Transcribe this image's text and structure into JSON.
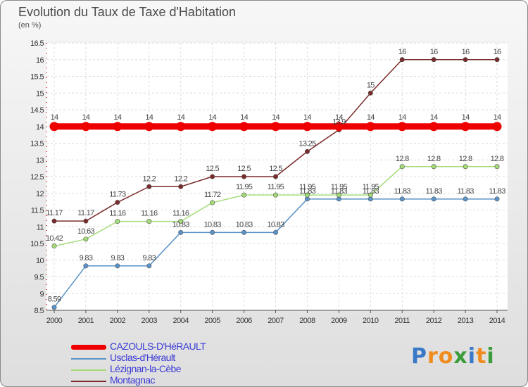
{
  "header": {
    "title": "Evolution du Taux de Taxe d'Habitation",
    "subtitle": "(en %)"
  },
  "chart_data": {
    "type": "line",
    "title": "Evolution du Taux de Taxe d'Habitation",
    "ylabel": "(en %)",
    "xlabel": "",
    "categories": [
      "2000",
      "2001",
      "2002",
      "2003",
      "2004",
      "2005",
      "2006",
      "2007",
      "2008",
      "2009",
      "2010",
      "2011",
      "2012",
      "2013",
      "2014"
    ],
    "ylim": [
      8.5,
      16.5
    ],
    "yticks": [
      8.5,
      9,
      9.5,
      10,
      10.5,
      11,
      11.5,
      12,
      12.5,
      13,
      13.5,
      14,
      14.5,
      15,
      15.5,
      16,
      16.5
    ],
    "ytick_labels": [
      "8.5",
      "9",
      "9.5",
      "10",
      "10.5",
      "11",
      "11.5",
      "12",
      "12.5",
      "13",
      "13.5",
      "14",
      "14.5",
      "15",
      "15.5",
      "16",
      "16.5"
    ],
    "grid": true,
    "legend_position": "bottom-left",
    "series": [
      {
        "name": "CAZOULS-D'HéRAULT",
        "color": "#ee0000",
        "values": [
          14,
          14,
          14,
          14,
          14,
          14,
          14,
          14,
          14,
          14,
          14,
          14,
          14,
          14,
          14
        ],
        "labels": [
          "14",
          "14",
          "14",
          "14",
          "14",
          "14",
          "14",
          "14",
          "14",
          "14",
          "14",
          "14",
          "14",
          "14",
          "14"
        ]
      },
      {
        "name": "Usclas-d'Hérault",
        "color": "#5a93c8",
        "values": [
          8.59,
          9.83,
          9.83,
          9.83,
          10.83,
          10.83,
          10.83,
          10.83,
          11.83,
          11.83,
          11.83,
          11.83,
          11.83,
          11.83,
          11.83
        ],
        "labels": [
          "8.59",
          "9.83",
          "9.83",
          "9.83",
          "10.83",
          "10.83",
          "10.83",
          "10.83",
          "11.83",
          "11.83",
          "11.83",
          "11.83",
          "11.83",
          "11.83",
          "11.83"
        ]
      },
      {
        "name": "Lézignan-la-Cèbe",
        "color": "#a4dc78",
        "values": [
          10.42,
          10.63,
          11.16,
          11.16,
          11.16,
          11.72,
          11.95,
          11.95,
          11.95,
          11.95,
          11.95,
          12.8,
          12.8,
          12.8,
          12.8
        ],
        "labels": [
          "10.42",
          "10.63",
          "11.16",
          "11.16",
          "11.16",
          "11.72",
          "11.95",
          "11.95",
          "11.95",
          "11.95",
          "11.95",
          "12.8",
          "12.8",
          "12.8",
          "12.8"
        ]
      },
      {
        "name": "Montagnac",
        "color": "#7a2a2a",
        "values": [
          11.17,
          11.17,
          11.73,
          12.2,
          12.2,
          12.5,
          12.5,
          12.5,
          13.25,
          13.9,
          15,
          16,
          16,
          16,
          16
        ],
        "labels": [
          "11.17",
          "11.17",
          "11.73",
          "12.2",
          "12.2",
          "12.5",
          "12.5",
          "12.5",
          "13.25",
          "13.9",
          "15",
          "16",
          "16",
          "16",
          "16"
        ]
      }
    ]
  },
  "legend": {
    "items": [
      {
        "label": "CAZOULS-D'HéRAULT",
        "color": "#ee0000"
      },
      {
        "label": "Usclas-d'Hérault",
        "color": "#5a93c8"
      },
      {
        "label": "Lézignan-la-Cèbe",
        "color": "#a4dc78"
      },
      {
        "label": "Montagnac",
        "color": "#7a2a2a"
      }
    ]
  },
  "logo": {
    "text": "Proxiti",
    "letters": [
      "P",
      "r",
      "o",
      "x",
      "i",
      "t",
      "i"
    ],
    "colors": [
      "#3a78c8",
      "#f08c1e",
      "#f08c1e",
      "#3a9c3a",
      "#3a78c8",
      "#f08c1e",
      "#3a9c3a"
    ]
  }
}
